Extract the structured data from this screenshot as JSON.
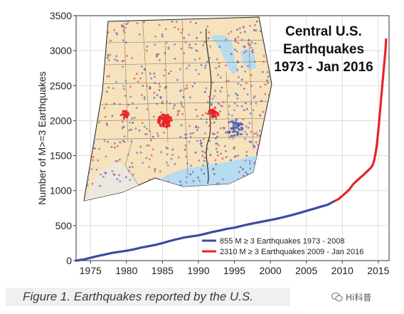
{
  "colors": {
    "background": "#ffffff",
    "map_land": "#f6e2bc",
    "map_water": "#b5dcef",
    "blue_series": "#3b4ba3",
    "red_series": "#e8232a",
    "axis": "#333333"
  },
  "chart_data": {
    "type": "line",
    "title": "Central U.S. Earthquakes 1973 - Jan 2016",
    "title_lines": [
      "Central U.S.",
      "Earthquakes",
      "1973 - Jan 2016"
    ],
    "xlabel": "",
    "ylabel": "Number of M>=3 Earthquakes",
    "xlim": [
      1973,
      2016.5
    ],
    "ylim": [
      0,
      3500
    ],
    "x_ticks": [
      1975,
      1980,
      1985,
      1990,
      1995,
      2000,
      2005,
      2010,
      2015
    ],
    "y_ticks": [
      0,
      500,
      1000,
      1500,
      2000,
      2500,
      3000,
      3500
    ],
    "grid": true,
    "legend_position": "bottom-right",
    "inset": "map of the central United States with earthquake epicenters",
    "series": [
      {
        "name": "855 M ≥ 3 Earthquakes 1973 - 2008",
        "color": "#3b4ba3",
        "x": [
          1973,
          1974,
          1975,
          1976,
          1977,
          1978,
          1979,
          1980,
          1981,
          1982,
          1983,
          1984,
          1985,
          1986,
          1987,
          1988,
          1989,
          1990,
          1991,
          1992,
          1993,
          1994,
          1995,
          1996,
          1997,
          1998,
          1999,
          2000,
          2001,
          2002,
          2003,
          2004,
          2005,
          2006,
          2007,
          2008,
          2009
        ],
        "y": [
          0,
          15,
          40,
          65,
          88,
          110,
          125,
          140,
          160,
          185,
          205,
          225,
          250,
          280,
          305,
          330,
          345,
          360,
          385,
          410,
          430,
          455,
          470,
          495,
          520,
          540,
          560,
          580,
          600,
          625,
          650,
          680,
          710,
          740,
          770,
          800,
          855
        ]
      },
      {
        "name": "2310 M ≥ 3 Earthquakes 2009 - Jan 2016",
        "color": "#e8232a",
        "x": [
          2009,
          2009.5,
          2010,
          2010.5,
          2011,
          2011.5,
          2012,
          2012.5,
          2013,
          2013.5,
          2014,
          2014.2,
          2014.4,
          2014.6,
          2014.8,
          2015,
          2015.2,
          2015.4,
          2015.6,
          2015.8,
          2016,
          2016.08
        ],
        "y": [
          855,
          880,
          925,
          970,
          1020,
          1090,
          1140,
          1185,
          1230,
          1280,
          1330,
          1360,
          1420,
          1520,
          1650,
          1850,
          2080,
          2320,
          2550,
          2780,
          3000,
          3160
        ]
      }
    ]
  },
  "caption": "Figure 1. Earthquakes reported by the U.S.",
  "watermark": "Hi科普",
  "watermark_icon": "wechat-icon"
}
